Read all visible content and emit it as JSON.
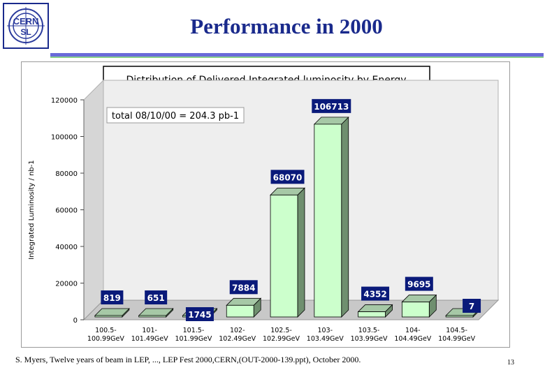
{
  "slide": {
    "title": "Performance in 2000",
    "logo_text_top": "CERN",
    "logo_text_bottom": "SL",
    "footer": "S. Myers, Twelve years of beam in LEP, ...,  LEP Fest 2000,CERN,(OUT-2000-139.ppt), October 2000.",
    "page_number": "13"
  },
  "colors": {
    "title": "#1a2a8c",
    "bar_front": "#ccffcc",
    "bar_side": "#6f8f6f",
    "bar_top": "#a6c8a6",
    "label_bg": "#0a1a7a",
    "label_text": "#ffffff",
    "plot_wall": "#eeeeee",
    "plot_floor": "#c8c8c8"
  },
  "chart_data": {
    "type": "bar",
    "title": "Distribution of Delivered Integrated luminosity by Energy",
    "annotation": "total 08/10/00 = 204.3 pb-1",
    "xlabel": "",
    "ylabel": "Integrated Luminosity / nb-1",
    "ylim": [
      0,
      120000
    ],
    "yticks": [
      "0",
      "20000",
      "40000",
      "60000",
      "80000",
      "100000",
      "120000"
    ],
    "yticks_values": [
      0,
      20000,
      40000,
      60000,
      80000,
      100000,
      120000
    ],
    "categories": [
      [
        "100.5-",
        "100.99GeV"
      ],
      [
        "101-",
        "101.49GeV"
      ],
      [
        "101.5-",
        "101.99GeV"
      ],
      [
        "102-",
        "102.49GeV"
      ],
      [
        "102.5-",
        "102.99GeV"
      ],
      [
        "103-",
        "103.49GeV"
      ],
      [
        "103.5-",
        "103.99GeV"
      ],
      [
        "104-",
        "104.49GeV"
      ],
      [
        "104.5-",
        "104.99GeV"
      ]
    ],
    "values": [
      819,
      651,
      1745,
      7884,
      68070,
      106713,
      4352,
      9695,
      7
    ],
    "value_labels": [
      "819",
      "651",
      "1745",
      "7884",
      "68070",
      "106713",
      "4352",
      "9695",
      "7"
    ],
    "grid": false,
    "legend": "none"
  }
}
